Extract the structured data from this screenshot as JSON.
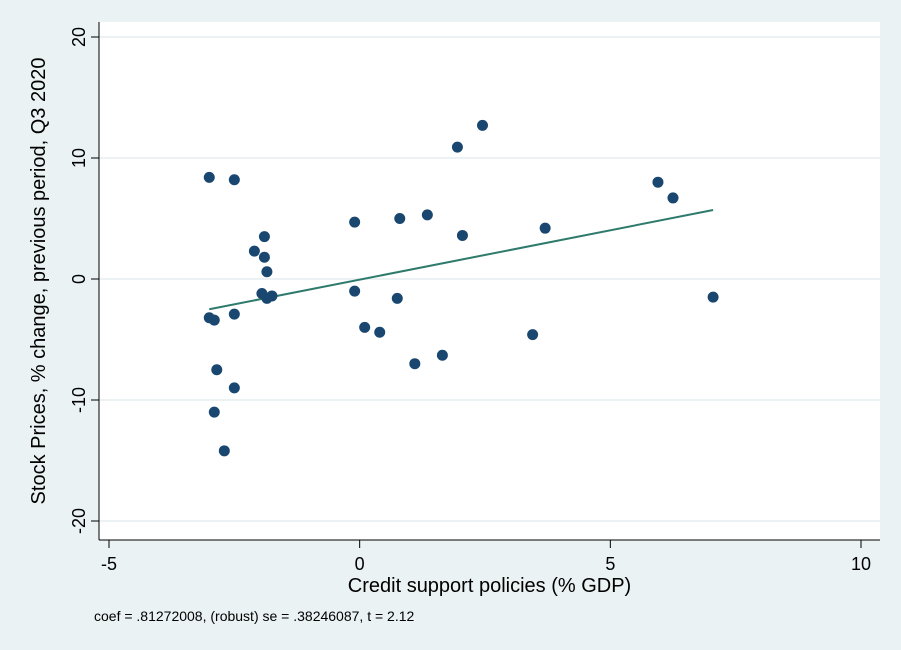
{
  "chart_data": {
    "type": "scatter",
    "xlabel": "Credit support policies (% GDP)",
    "ylabel": "Stock Prices, % change, previous period, Q3 2020",
    "note": "coef = .81272008, (robust) se = .38246087, t = 2.12",
    "xlim": [
      -5,
      10
    ],
    "ylim": [
      -20,
      20
    ],
    "xticks": [
      -5,
      0,
      5,
      10
    ],
    "yticks": [
      -20,
      -10,
      0,
      10,
      20
    ],
    "grid": "horizontal",
    "colors": {
      "background": "#eaf2f3",
      "plot": "#ffffff",
      "points": "#1a476f",
      "fit": "#2e7a6c",
      "grid": "#e6eeef"
    },
    "points": [
      {
        "x": -3.0,
        "y": 8.4
      },
      {
        "x": -2.5,
        "y": 8.2
      },
      {
        "x": -3.0,
        "y": -3.2
      },
      {
        "x": -2.9,
        "y": -3.4
      },
      {
        "x": -2.5,
        "y": -2.9
      },
      {
        "x": -2.85,
        "y": -7.5
      },
      {
        "x": -2.5,
        "y": -9.0
      },
      {
        "x": -2.9,
        "y": -11.0
      },
      {
        "x": -2.7,
        "y": -14.2
      },
      {
        "x": -2.1,
        "y": 2.3
      },
      {
        "x": -1.9,
        "y": 3.5
      },
      {
        "x": -1.9,
        "y": 1.8
      },
      {
        "x": -1.85,
        "y": 0.6
      },
      {
        "x": -1.95,
        "y": -1.2
      },
      {
        "x": -1.85,
        "y": -1.6
      },
      {
        "x": -1.75,
        "y": -1.4
      },
      {
        "x": -0.1,
        "y": 4.7
      },
      {
        "x": -0.1,
        "y": -1.0
      },
      {
        "x": 0.1,
        "y": -4.0
      },
      {
        "x": 0.4,
        "y": -4.4
      },
      {
        "x": 0.8,
        "y": 5.0
      },
      {
        "x": 0.75,
        "y": -1.6
      },
      {
        "x": 1.35,
        "y": 5.3
      },
      {
        "x": 1.1,
        "y": -7.0
      },
      {
        "x": 1.65,
        "y": -6.3
      },
      {
        "x": 1.95,
        "y": 10.9
      },
      {
        "x": 2.05,
        "y": 3.6
      },
      {
        "x": 2.45,
        "y": 12.7
      },
      {
        "x": 3.45,
        "y": -4.6
      },
      {
        "x": 3.7,
        "y": 4.2
      },
      {
        "x": 5.95,
        "y": 8.0
      },
      {
        "x": 6.25,
        "y": 6.7
      },
      {
        "x": 7.05,
        "y": -1.5
      }
    ],
    "fit_line": {
      "x": [
        -3.0,
        7.05
      ],
      "y": [
        -2.5,
        5.7
      ]
    }
  }
}
